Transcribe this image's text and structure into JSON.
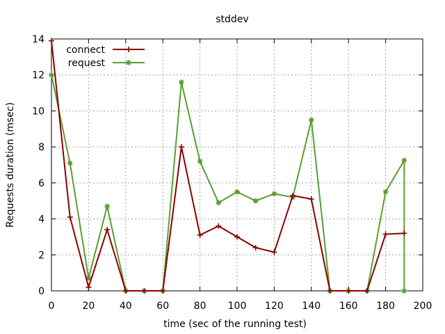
{
  "chart_data": {
    "type": "line",
    "title": "stddev",
    "xlabel": "time (sec of the running test)",
    "ylabel": "Requests duration (msec)",
    "xlim": [
      0,
      200
    ],
    "ylim": [
      0,
      14
    ],
    "xticks": [
      0,
      20,
      40,
      60,
      80,
      100,
      120,
      140,
      160,
      180,
      200
    ],
    "yticks": [
      0,
      2,
      4,
      6,
      8,
      10,
      12,
      14
    ],
    "grid": true,
    "legend_position": "top-left",
    "series": [
      {
        "name": "connect",
        "color": "#8b0000",
        "marker": "plus",
        "x": [
          0,
          10,
          20,
          30,
          40,
          50,
          60,
          70,
          80,
          90,
          100,
          110,
          120,
          130,
          140,
          150,
          160,
          170,
          180,
          190
        ],
        "y": [
          13.9,
          4.1,
          0.2,
          3.4,
          0.0,
          0.0,
          0.0,
          8.0,
          3.1,
          3.6,
          3.0,
          2.4,
          2.15,
          5.3,
          5.1,
          0.0,
          0.0,
          0.0,
          3.15,
          3.2
        ]
      },
      {
        "name": "request",
        "color": "#5a9e2f",
        "marker": "star",
        "x": [
          0,
          10,
          20,
          30,
          40,
          50,
          60,
          70,
          80,
          90,
          100,
          110,
          120,
          130,
          140,
          150,
          160,
          170,
          180,
          190,
          190
        ],
        "y": [
          12.0,
          7.1,
          0.7,
          4.7,
          0.0,
          0.0,
          0.0,
          11.6,
          7.2,
          4.9,
          5.5,
          5.0,
          5.4,
          5.2,
          9.5,
          0.0,
          0.0,
          0.0,
          5.5,
          7.25,
          0.0
        ]
      }
    ]
  }
}
